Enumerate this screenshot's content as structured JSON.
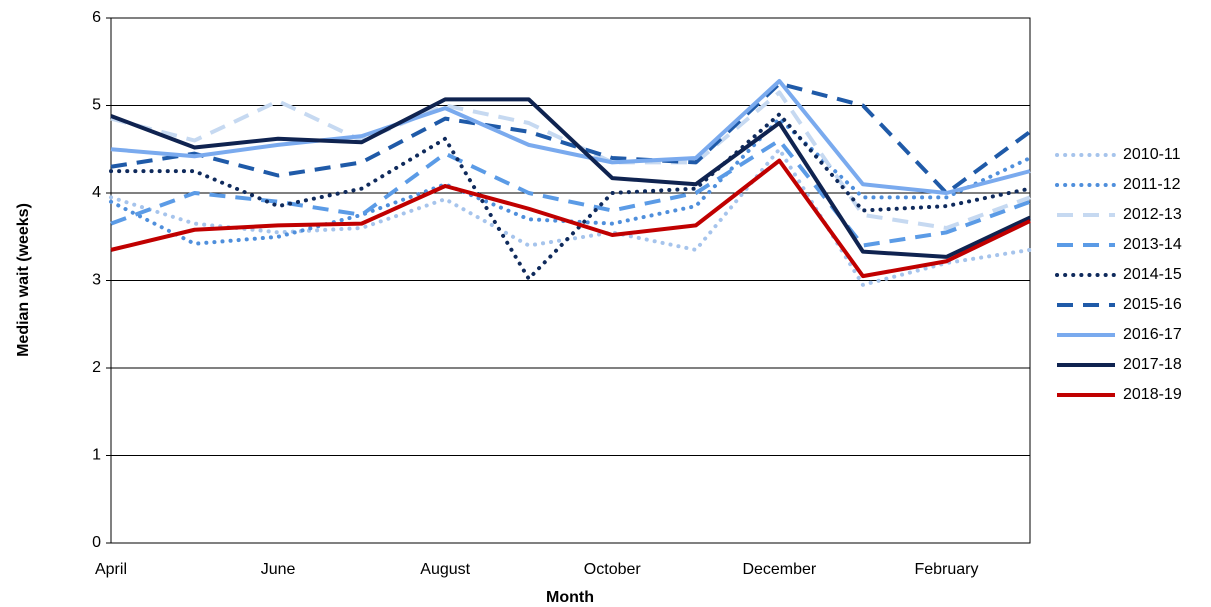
{
  "chart_data": {
    "type": "line",
    "x_label": "Month",
    "y_label": "Median wait (weeks)",
    "categories": [
      "April",
      null,
      "June",
      null,
      "August",
      null,
      "October",
      null,
      "December",
      null,
      "February",
      null
    ],
    "ylim": [
      0,
      6
    ],
    "yticks": [
      0,
      1,
      2,
      3,
      4,
      5,
      6
    ],
    "grid": true,
    "legend": "right",
    "series": [
      {
        "name": "2010-11",
        "color": "#a6c4ec",
        "style": "dot",
        "values": [
          3.95,
          3.65,
          3.55,
          3.6,
          3.93,
          3.4,
          3.55,
          3.35,
          4.5,
          2.95,
          3.2,
          3.35
        ]
      },
      {
        "name": "2011-12",
        "color": "#4f8fdc",
        "style": "dot",
        "values": [
          3.9,
          3.42,
          3.5,
          3.75,
          4.1,
          3.7,
          3.65,
          3.85,
          4.85,
          3.95,
          3.95,
          4.4
        ]
      },
      {
        "name": "2012-13",
        "color": "#c6d9f1",
        "style": "dash",
        "values": [
          4.85,
          4.6,
          5.05,
          4.6,
          5.0,
          4.8,
          4.35,
          4.35,
          5.15,
          3.75,
          3.6,
          3.95
        ]
      },
      {
        "name": "2013-14",
        "color": "#5b9be6",
        "style": "dash",
        "values": [
          3.65,
          4.0,
          3.9,
          3.75,
          4.45,
          4.0,
          3.8,
          4.0,
          4.6,
          3.4,
          3.55,
          3.9
        ]
      },
      {
        "name": "2014-15",
        "color": "#0f2a5c",
        "style": "dot",
        "values": [
          4.25,
          4.25,
          3.85,
          4.05,
          4.62,
          3.02,
          4.0,
          4.05,
          4.9,
          3.8,
          3.85,
          4.05
        ]
      },
      {
        "name": "2015-16",
        "color": "#1f5aa8",
        "style": "dash",
        "values": [
          4.3,
          4.45,
          4.2,
          4.35,
          4.85,
          4.7,
          4.4,
          4.35,
          5.25,
          5.0,
          4.0,
          4.7
        ]
      },
      {
        "name": "2016-17",
        "color": "#7aaaee",
        "style": "solid",
        "values": [
          4.5,
          4.42,
          4.55,
          4.65,
          4.97,
          4.55,
          4.35,
          4.4,
          5.28,
          4.1,
          4.0,
          4.25
        ]
      },
      {
        "name": "2017-18",
        "color": "#0f2350",
        "style": "solid",
        "values": [
          4.88,
          4.52,
          4.62,
          4.58,
          5.07,
          5.07,
          4.17,
          4.1,
          4.8,
          3.33,
          3.27,
          3.72
        ]
      },
      {
        "name": "2018-19",
        "color": "#c00000",
        "style": "solid",
        "values": [
          3.35,
          3.58,
          3.63,
          3.65,
          4.08,
          3.82,
          3.52,
          3.63,
          4.37,
          3.05,
          3.22,
          3.68
        ]
      }
    ]
  }
}
